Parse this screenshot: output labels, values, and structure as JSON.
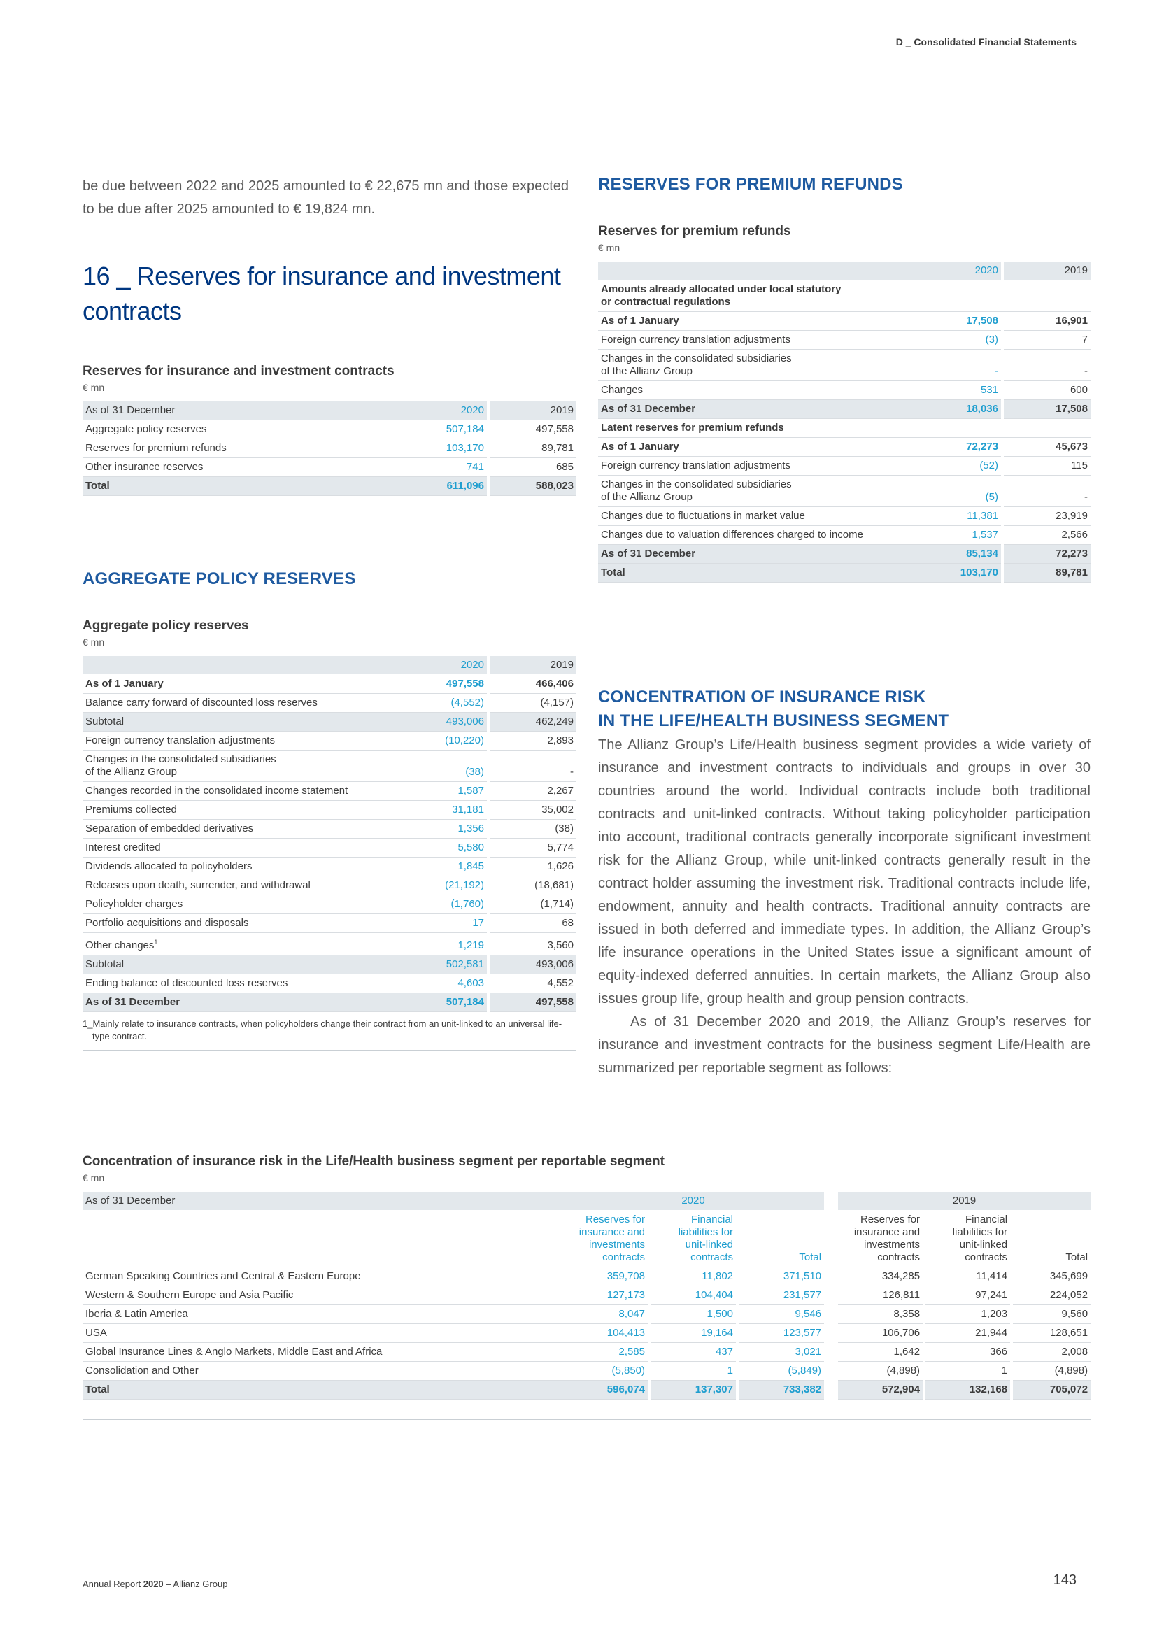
{
  "header": {
    "section": "D _ Consolidated Financial Statements"
  },
  "intro_text": "be due between 2022 and 2025 amounted to € 22,675 mn and those expected to be due after 2025 amounted to € 19,824 mn.",
  "section_title": "16 _ Reserves for insurance and investment contracts",
  "reserves_table": {
    "title": "Reserves for insurance and investment contracts",
    "unit": "€ mn",
    "header": {
      "label": "As of 31 December",
      "y2020": "2020",
      "y2019": "2019"
    },
    "rows": [
      {
        "label": "Aggregate policy reserves",
        "v2020": "507,184",
        "v2019": "497,558"
      },
      {
        "label": "Reserves for premium refunds",
        "v2020": "103,170",
        "v2019": "89,781"
      },
      {
        "label": "Other insurance reserves",
        "v2020": "741",
        "v2019": "685"
      }
    ],
    "total": {
      "label": "Total",
      "v2020": "611,096",
      "v2019": "588,023"
    }
  },
  "aggregate": {
    "heading": "AGGREGATE POLICY RESERVES",
    "title": "Aggregate policy reserves",
    "unit": "€ mn",
    "header": {
      "y2020": "2020",
      "y2019": "2019"
    },
    "rows": [
      {
        "label": "As of 1 January",
        "v2020": "497,558",
        "v2019": "466,406",
        "style": "bold"
      },
      {
        "label": "Balance carry forward of discounted loss reserves",
        "v2020": "(4,552)",
        "v2019": "(4,157)"
      },
      {
        "label": "Subtotal",
        "v2020": "493,006",
        "v2019": "462,249",
        "style": "sh"
      },
      {
        "label": "Foreign currency translation adjustments",
        "v2020": "(10,220)",
        "v2019": "2,893"
      },
      {
        "label": "Changes in the consolidated subsidiaries",
        "label2": "of the Allianz Group",
        "v2020": "(38)",
        "v2019": "-"
      },
      {
        "label": "Changes recorded in the consolidated income statement",
        "v2020": "1,587",
        "v2019": "2,267"
      },
      {
        "label": "Premiums collected",
        "v2020": "31,181",
        "v2019": "35,002"
      },
      {
        "label": "Separation of embedded derivatives",
        "v2020": "1,356",
        "v2019": "(38)"
      },
      {
        "label": "Interest credited",
        "v2020": "5,580",
        "v2019": "5,774"
      },
      {
        "label": "Dividends allocated to policyholders",
        "v2020": "1,845",
        "v2019": "1,626"
      },
      {
        "label": "Releases upon death, surrender, and withdrawal",
        "v2020": "(21,192)",
        "v2019": "(18,681)"
      },
      {
        "label": "Policyholder charges",
        "v2020": "(1,760)",
        "v2019": "(1,714)"
      },
      {
        "label": "Portfolio acquisitions and disposals",
        "v2020": "17",
        "v2019": "68"
      },
      {
        "label": "Other changes",
        "sup": "1",
        "v2020": "1,219",
        "v2019": "3,560"
      },
      {
        "label": "Subtotal",
        "v2020": "502,581",
        "v2019": "493,006",
        "style": "sh"
      },
      {
        "label": "Ending balance of discounted loss reserves",
        "v2020": "4,603",
        "v2019": "4,552"
      },
      {
        "label": "As of 31 December",
        "v2020": "507,184",
        "v2019": "497,558",
        "style": "total"
      }
    ],
    "footnote": "1_Mainly relate to insurance contracts, when policyholders change their contract from an unit-linked to an universal life-type contract."
  },
  "premium_refunds": {
    "heading": "RESERVES FOR PREMIUM REFUNDS",
    "title": "Reserves for premium refunds",
    "unit": "€ mn",
    "header": {
      "y2020": "2020",
      "y2019": "2019"
    },
    "rows": [
      {
        "label": "Amounts already allocated under local statutory",
        "label2": "or contractual regulations",
        "v2020": "",
        "v2019": "",
        "style": "group"
      },
      {
        "label": "As of 1 January",
        "v2020": "17,508",
        "v2019": "16,901",
        "style": "bold"
      },
      {
        "label": "Foreign currency translation adjustments",
        "v2020": "(3)",
        "v2019": "7"
      },
      {
        "label": "Changes in the consolidated subsidiaries",
        "label2": "of the Allianz Group",
        "v2020": "-",
        "v2019": "-"
      },
      {
        "label": "Changes",
        "v2020": "531",
        "v2019": "600"
      },
      {
        "label": "As of 31 December",
        "v2020": "18,036",
        "v2019": "17,508",
        "style": "total"
      },
      {
        "label": "Latent reserves for premium refunds",
        "v2020": "",
        "v2019": "",
        "style": "group"
      },
      {
        "label": "As of 1 January",
        "v2020": "72,273",
        "v2019": "45,673",
        "style": "bold"
      },
      {
        "label": "Foreign currency translation adjustments",
        "v2020": "(52)",
        "v2019": "115"
      },
      {
        "label": "Changes in the consolidated subsidiaries",
        "label2": "of the Allianz Group",
        "v2020": "(5)",
        "v2019": "-"
      },
      {
        "label": "Changes due to fluctuations in market value",
        "v2020": "11,381",
        "v2019": "23,919"
      },
      {
        "label": "Changes due to valuation differences charged to income",
        "v2020": "1,537",
        "v2019": "2,566"
      },
      {
        "label": "As of 31 December",
        "v2020": "85,134",
        "v2019": "72,273",
        "style": "total"
      },
      {
        "label": "Total",
        "v2020": "103,170",
        "v2019": "89,781",
        "style": "total"
      }
    ]
  },
  "concentration": {
    "heading_line1": "CONCENTRATION OF INSURANCE RISK",
    "heading_line2": "IN THE LIFE/HEALTH BUSINESS SEGMENT",
    "para1": "The Allianz Group’s Life/Health business segment provides a wide variety of insurance and investment contracts to individuals and groups in over 30 countries around the world. Individual contracts include both traditional contracts and unit-linked contracts. Without taking policyholder participation into account, traditional contracts generally incorporate significant investment risk for the Allianz Group, while unit-linked contracts generally result in the contract holder assuming the investment risk. Traditional contracts include life, endowment, annuity and health contracts. Traditional annuity contracts are issued in both deferred and immediate types. In addition, the Allianz Group’s life insurance operations in the United States issue a significant amount of equity-indexed deferred annuities. In certain markets, the Allianz Group also issues group life, group health and group pension contracts.",
    "para2": "As of 31 December 2020 and 2019, the Allianz Group’s reserves for insurance and investment contracts for the business segment Life/Health are summarized per reportable segment as follows:"
  },
  "segment_table": {
    "title": "Concentration of insurance risk in the Life/Health business segment per reportable segment",
    "unit": "€ mn",
    "header": {
      "label": "As of 31 December",
      "y2020": "2020",
      "y2019": "2019",
      "col_reserves": [
        "Reserves for",
        "insurance and",
        "investments",
        "contracts"
      ],
      "col_financial": [
        "Financial",
        "liabilities for",
        "unit-linked",
        "contracts"
      ],
      "col_total": "Total"
    },
    "rows": [
      {
        "label": "German Speaking Countries and Central & Eastern Europe",
        "r20": "359,708",
        "f20": "11,802",
        "t20": "371,510",
        "r19": "334,285",
        "f19": "11,414",
        "t19": "345,699"
      },
      {
        "label": "Western & Southern Europe and Asia Pacific",
        "r20": "127,173",
        "f20": "104,404",
        "t20": "231,577",
        "r19": "126,811",
        "f19": "97,241",
        "t19": "224,052"
      },
      {
        "label": "Iberia & Latin America",
        "r20": "8,047",
        "f20": "1,500",
        "t20": "9,546",
        "r19": "8,358",
        "f19": "1,203",
        "t19": "9,560"
      },
      {
        "label": "USA",
        "r20": "104,413",
        "f20": "19,164",
        "t20": "123,577",
        "r19": "106,706",
        "f19": "21,944",
        "t19": "128,651"
      },
      {
        "label": "Global Insurance Lines & Anglo Markets, Middle East and Africa",
        "r20": "2,585",
        "f20": "437",
        "t20": "3,021",
        "r19": "1,642",
        "f19": "366",
        "t19": "2,008"
      },
      {
        "label": "Consolidation and Other",
        "r20": "(5,850)",
        "f20": "1",
        "t20": "(5,849)",
        "r19": "(4,898)",
        "f19": "1",
        "t19": "(4,898)"
      }
    ],
    "total": {
      "label": "Total",
      "r20": "596,074",
      "f20": "137,307",
      "t20": "733,382",
      "r19": "572,904",
      "f19": "132,168",
      "t19": "705,072"
    }
  },
  "footer": {
    "report_prefix": "Annual Report ",
    "report_year": "2020",
    "report_suffix": " – Allianz Group",
    "page": "143"
  }
}
